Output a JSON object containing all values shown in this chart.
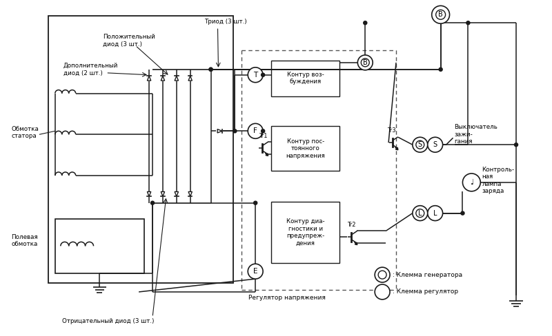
{
  "bg_color": "#ffffff",
  "line_color": "#1a1a1a",
  "fig_width": 8.0,
  "fig_height": 4.88,
  "labels": {
    "pos_diode": "Положительный\nдиод (3 шт.)",
    "add_diode": "Дополнительный\nдиод (2 шт.)",
    "stator": "Обмотка\nстатора",
    "field": "Полевая\nобмотка",
    "triad": "Триод (3 шт.)",
    "neg_diode": "Отрицательный диод (3 шт.)",
    "reg_voltage": "Регулятор напряжения",
    "excit": "Контур воз-\nбуждения",
    "const_volt": "Контур пос-\nтоянного\nнапряжения",
    "diag": "Контур диа-\nгностики и\nпредупреж-\nдения",
    "ignition": "Выключатель\nзажи-\nгания",
    "lamp": "Контроль-\nная\nлампа\nзаряда",
    "gen_terminal": ": Клемма генератора",
    "reg_terminal": ": Клемма регулятор"
  }
}
